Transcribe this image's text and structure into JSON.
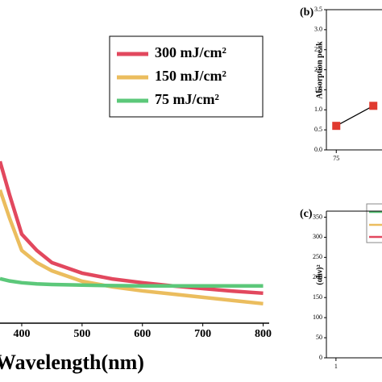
{
  "chart_data": [
    {
      "type": "line",
      "x_label": "Wavelength(nm)",
      "x": [
        364,
        380,
        400,
        425,
        450,
        500,
        550,
        600,
        650,
        700,
        750,
        800
      ],
      "xlim": [
        364,
        810
      ],
      "xticks": [
        400,
        500,
        600,
        700,
        800
      ],
      "ylim": [
        0,
        1
      ],
      "legend": "upper right",
      "series": [
        {
          "name": "300 mJ/cm²",
          "color": "#e2485e",
          "values": [
            0.556,
            0.44,
            0.306,
            0.25,
            0.208,
            0.172,
            0.152,
            0.139,
            0.128,
            0.119,
            0.11,
            0.103
          ]
        },
        {
          "name": "150 mJ/cm²",
          "color": "#ebbd5e",
          "values": [
            0.458,
            0.36,
            0.25,
            0.208,
            0.18,
            0.144,
            0.125,
            0.111,
            0.1,
            0.089,
            0.078,
            0.067
          ]
        },
        {
          "name": "75 mJ/cm²",
          "color": "#5cc87a",
          "values": [
            0.153,
            0.145,
            0.139,
            0.135,
            0.133,
            0.131,
            0.129,
            0.128,
            0.128,
            0.128,
            0.128,
            0.128
          ]
        }
      ]
    },
    {
      "type": "line",
      "panel_label": "(b)",
      "y_label": "Absorption peak",
      "x": [
        75,
        150
      ],
      "xlim": [
        55,
        210
      ],
      "xticks": [
        75
      ],
      "ylim": [
        0,
        3.5
      ],
      "yticks": [
        {
          "value": 0,
          "label": "0.0"
        },
        {
          "value": 0.5,
          "label": "0.5"
        },
        {
          "value": 1,
          "label": "1.0"
        },
        {
          "value": 1.5,
          "label": "1.5"
        },
        {
          "value": 2,
          "label": "2.0"
        },
        {
          "value": 2.5,
          "label": "2.5"
        },
        {
          "value": 3,
          "label": "3.0"
        },
        {
          "value": 3.5,
          "label": "3.5"
        }
      ],
      "series": [
        {
          "color": "#e03a2f",
          "values": [
            0.6,
            1.1
          ]
        }
      ]
    },
    {
      "type": "axes",
      "panel_label": "(c)",
      "y_label": "(αhν)²",
      "xlim": [
        0.85,
        2.05
      ],
      "xticks": [
        1
      ],
      "ylim": [
        0,
        365
      ],
      "yticks": [
        0,
        50,
        100,
        150,
        200,
        250,
        300,
        350
      ]
    }
  ]
}
